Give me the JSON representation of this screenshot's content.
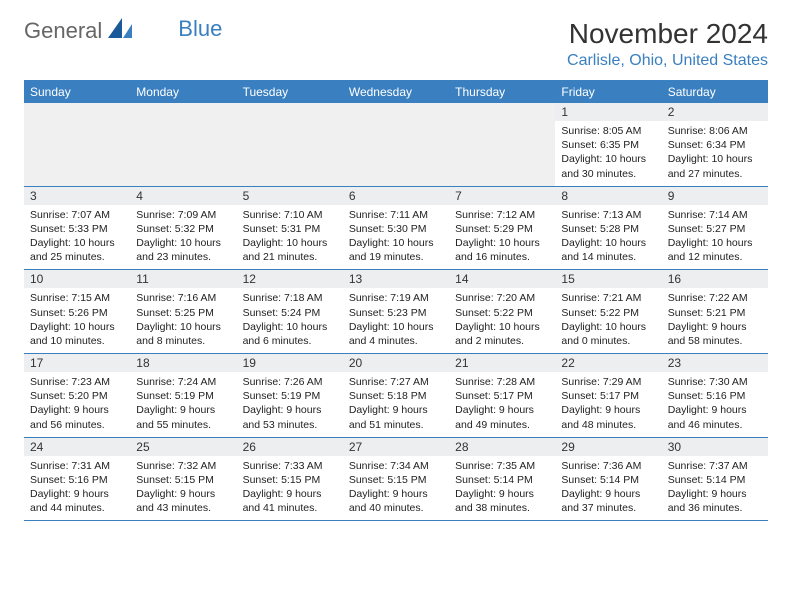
{
  "logo": {
    "text1": "General",
    "text2": "Blue"
  },
  "title": "November 2024",
  "location": "Carlisle, Ohio, United States",
  "colors": {
    "accent": "#3a7fbf",
    "header_bg": "#3a7fbf",
    "header_text": "#ffffff",
    "daynum_bg": "#eceef0",
    "empty_bg": "#f0f0f0",
    "text": "#222222",
    "title_color": "#333333"
  },
  "day_names": [
    "Sunday",
    "Monday",
    "Tuesday",
    "Wednesday",
    "Thursday",
    "Friday",
    "Saturday"
  ],
  "weeks": [
    [
      null,
      null,
      null,
      null,
      null,
      {
        "num": "1",
        "sunrise": "Sunrise: 8:05 AM",
        "sunset": "Sunset: 6:35 PM",
        "daylight": "Daylight: 10 hours and 30 minutes."
      },
      {
        "num": "2",
        "sunrise": "Sunrise: 8:06 AM",
        "sunset": "Sunset: 6:34 PM",
        "daylight": "Daylight: 10 hours and 27 minutes."
      }
    ],
    [
      {
        "num": "3",
        "sunrise": "Sunrise: 7:07 AM",
        "sunset": "Sunset: 5:33 PM",
        "daylight": "Daylight: 10 hours and 25 minutes."
      },
      {
        "num": "4",
        "sunrise": "Sunrise: 7:09 AM",
        "sunset": "Sunset: 5:32 PM",
        "daylight": "Daylight: 10 hours and 23 minutes."
      },
      {
        "num": "5",
        "sunrise": "Sunrise: 7:10 AM",
        "sunset": "Sunset: 5:31 PM",
        "daylight": "Daylight: 10 hours and 21 minutes."
      },
      {
        "num": "6",
        "sunrise": "Sunrise: 7:11 AM",
        "sunset": "Sunset: 5:30 PM",
        "daylight": "Daylight: 10 hours and 19 minutes."
      },
      {
        "num": "7",
        "sunrise": "Sunrise: 7:12 AM",
        "sunset": "Sunset: 5:29 PM",
        "daylight": "Daylight: 10 hours and 16 minutes."
      },
      {
        "num": "8",
        "sunrise": "Sunrise: 7:13 AM",
        "sunset": "Sunset: 5:28 PM",
        "daylight": "Daylight: 10 hours and 14 minutes."
      },
      {
        "num": "9",
        "sunrise": "Sunrise: 7:14 AM",
        "sunset": "Sunset: 5:27 PM",
        "daylight": "Daylight: 10 hours and 12 minutes."
      }
    ],
    [
      {
        "num": "10",
        "sunrise": "Sunrise: 7:15 AM",
        "sunset": "Sunset: 5:26 PM",
        "daylight": "Daylight: 10 hours and 10 minutes."
      },
      {
        "num": "11",
        "sunrise": "Sunrise: 7:16 AM",
        "sunset": "Sunset: 5:25 PM",
        "daylight": "Daylight: 10 hours and 8 minutes."
      },
      {
        "num": "12",
        "sunrise": "Sunrise: 7:18 AM",
        "sunset": "Sunset: 5:24 PM",
        "daylight": "Daylight: 10 hours and 6 minutes."
      },
      {
        "num": "13",
        "sunrise": "Sunrise: 7:19 AM",
        "sunset": "Sunset: 5:23 PM",
        "daylight": "Daylight: 10 hours and 4 minutes."
      },
      {
        "num": "14",
        "sunrise": "Sunrise: 7:20 AM",
        "sunset": "Sunset: 5:22 PM",
        "daylight": "Daylight: 10 hours and 2 minutes."
      },
      {
        "num": "15",
        "sunrise": "Sunrise: 7:21 AM",
        "sunset": "Sunset: 5:22 PM",
        "daylight": "Daylight: 10 hours and 0 minutes."
      },
      {
        "num": "16",
        "sunrise": "Sunrise: 7:22 AM",
        "sunset": "Sunset: 5:21 PM",
        "daylight": "Daylight: 9 hours and 58 minutes."
      }
    ],
    [
      {
        "num": "17",
        "sunrise": "Sunrise: 7:23 AM",
        "sunset": "Sunset: 5:20 PM",
        "daylight": "Daylight: 9 hours and 56 minutes."
      },
      {
        "num": "18",
        "sunrise": "Sunrise: 7:24 AM",
        "sunset": "Sunset: 5:19 PM",
        "daylight": "Daylight: 9 hours and 55 minutes."
      },
      {
        "num": "19",
        "sunrise": "Sunrise: 7:26 AM",
        "sunset": "Sunset: 5:19 PM",
        "daylight": "Daylight: 9 hours and 53 minutes."
      },
      {
        "num": "20",
        "sunrise": "Sunrise: 7:27 AM",
        "sunset": "Sunset: 5:18 PM",
        "daylight": "Daylight: 9 hours and 51 minutes."
      },
      {
        "num": "21",
        "sunrise": "Sunrise: 7:28 AM",
        "sunset": "Sunset: 5:17 PM",
        "daylight": "Daylight: 9 hours and 49 minutes."
      },
      {
        "num": "22",
        "sunrise": "Sunrise: 7:29 AM",
        "sunset": "Sunset: 5:17 PM",
        "daylight": "Daylight: 9 hours and 48 minutes."
      },
      {
        "num": "23",
        "sunrise": "Sunrise: 7:30 AM",
        "sunset": "Sunset: 5:16 PM",
        "daylight": "Daylight: 9 hours and 46 minutes."
      }
    ],
    [
      {
        "num": "24",
        "sunrise": "Sunrise: 7:31 AM",
        "sunset": "Sunset: 5:16 PM",
        "daylight": "Daylight: 9 hours and 44 minutes."
      },
      {
        "num": "25",
        "sunrise": "Sunrise: 7:32 AM",
        "sunset": "Sunset: 5:15 PM",
        "daylight": "Daylight: 9 hours and 43 minutes."
      },
      {
        "num": "26",
        "sunrise": "Sunrise: 7:33 AM",
        "sunset": "Sunset: 5:15 PM",
        "daylight": "Daylight: 9 hours and 41 minutes."
      },
      {
        "num": "27",
        "sunrise": "Sunrise: 7:34 AM",
        "sunset": "Sunset: 5:15 PM",
        "daylight": "Daylight: 9 hours and 40 minutes."
      },
      {
        "num": "28",
        "sunrise": "Sunrise: 7:35 AM",
        "sunset": "Sunset: 5:14 PM",
        "daylight": "Daylight: 9 hours and 38 minutes."
      },
      {
        "num": "29",
        "sunrise": "Sunrise: 7:36 AM",
        "sunset": "Sunset: 5:14 PM",
        "daylight": "Daylight: 9 hours and 37 minutes."
      },
      {
        "num": "30",
        "sunrise": "Sunrise: 7:37 AM",
        "sunset": "Sunset: 5:14 PM",
        "daylight": "Daylight: 9 hours and 36 minutes."
      }
    ]
  ]
}
